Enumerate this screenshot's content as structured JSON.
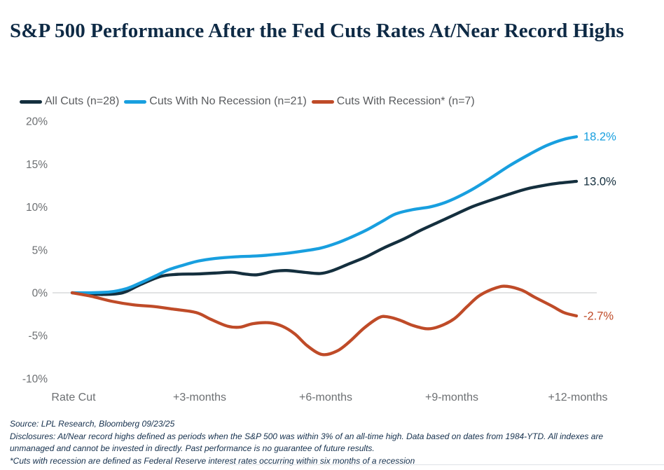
{
  "title": "S&P 500 Performance After the Fed Cuts Rates At/Near Record Highs",
  "colors": {
    "title_navy": "#0e2a45",
    "axis_gray": "#6c6f72",
    "legend_gray": "#595b5e",
    "gridline_gray": "#d9dadc",
    "all_cuts": "#142f3e",
    "no_recession": "#189fdf",
    "recession": "#bf4b28",
    "background": "#ffffff"
  },
  "footer": {
    "source": "Source: LPL Research, Bloomberg 09/23/25",
    "disclosure": "Disclosures: At/Near record highs defined as periods when the S&P 500 was within 3% of an all-time high. Data based on dates from 1984-YTD. All indexes are unmanaged and cannot be invested in directly. Past performance is no guarantee of future results.",
    "footnote": "*Cuts with recession are defined as Federal Reserve interest rates occurring within six months of a recession"
  },
  "chart_data": {
    "type": "line",
    "title": "S&P 500 Performance After the Fed Cuts Rates At/Near Record Highs",
    "xlabel": "",
    "ylabel": "",
    "x_categories": [
      "Rate Cut",
      "+3-months",
      "+6-months",
      "+9-months",
      "+12-months"
    ],
    "x_category_months": [
      0,
      3,
      6,
      9,
      12
    ],
    "x_range_months": [
      0,
      12
    ],
    "y_ticks": [
      20,
      15,
      10,
      5,
      0,
      -5,
      -10
    ],
    "y_tick_labels": [
      "20%",
      "15%",
      "10%",
      "5%",
      "0%",
      "-5%",
      "-10%"
    ],
    "ylim": [
      -10,
      20
    ],
    "grid": "horizontal line at 0% only",
    "legend_position": "top-left",
    "series": [
      {
        "name": "All Cuts (n=28)",
        "color": "#142f3e",
        "end_label": "13.0%",
        "final_value": 13.0,
        "points": [
          [
            0,
            0
          ],
          [
            0.35,
            -0.1
          ],
          [
            0.75,
            -0.2
          ],
          [
            1.2,
            0.0
          ],
          [
            1.6,
            0.9
          ],
          [
            2.1,
            1.9
          ],
          [
            2.5,
            2.15
          ],
          [
            2.95,
            2.2
          ],
          [
            3.4,
            2.3
          ],
          [
            3.8,
            2.4
          ],
          [
            4.1,
            2.2
          ],
          [
            4.4,
            2.1
          ],
          [
            4.8,
            2.5
          ],
          [
            5.1,
            2.6
          ],
          [
            5.5,
            2.4
          ],
          [
            5.9,
            2.25
          ],
          [
            6.2,
            2.6
          ],
          [
            6.6,
            3.4
          ],
          [
            7.0,
            4.2
          ],
          [
            7.4,
            5.2
          ],
          [
            7.9,
            6.3
          ],
          [
            8.3,
            7.3
          ],
          [
            8.7,
            8.2
          ],
          [
            9.1,
            9.1
          ],
          [
            9.5,
            10.0
          ],
          [
            9.9,
            10.7
          ],
          [
            10.4,
            11.5
          ],
          [
            10.8,
            12.1
          ],
          [
            11.2,
            12.5
          ],
          [
            11.6,
            12.8
          ],
          [
            12,
            13.0
          ]
        ]
      },
      {
        "name": "Cuts With No Recession (n=21)",
        "color": "#189fdf",
        "end_label": "18.2%",
        "final_value": 18.2,
        "points": [
          [
            0,
            0
          ],
          [
            0.4,
            0.0
          ],
          [
            0.9,
            0.1
          ],
          [
            1.3,
            0.5
          ],
          [
            1.6,
            1.1
          ],
          [
            2.0,
            2.0
          ],
          [
            2.3,
            2.7
          ],
          [
            2.7,
            3.3
          ],
          [
            3.0,
            3.7
          ],
          [
            3.4,
            4.0
          ],
          [
            3.9,
            4.2
          ],
          [
            4.4,
            4.3
          ],
          [
            4.9,
            4.5
          ],
          [
            5.4,
            4.8
          ],
          [
            5.9,
            5.2
          ],
          [
            6.3,
            5.8
          ],
          [
            6.6,
            6.4
          ],
          [
            7.0,
            7.3
          ],
          [
            7.4,
            8.4
          ],
          [
            7.7,
            9.2
          ],
          [
            8.1,
            9.7
          ],
          [
            8.5,
            10.0
          ],
          [
            8.8,
            10.4
          ],
          [
            9.1,
            11.0
          ],
          [
            9.5,
            12.0
          ],
          [
            9.9,
            13.2
          ],
          [
            10.4,
            14.8
          ],
          [
            10.9,
            16.2
          ],
          [
            11.3,
            17.2
          ],
          [
            11.7,
            17.9
          ],
          [
            12,
            18.2
          ]
        ]
      },
      {
        "name": "Cuts With Recession* (n=7)",
        "color": "#bf4b28",
        "end_label": "-2.7%",
        "final_value": -2.7,
        "points": [
          [
            0,
            0
          ],
          [
            0.45,
            -0.4
          ],
          [
            0.95,
            -1.0
          ],
          [
            1.45,
            -1.4
          ],
          [
            1.95,
            -1.6
          ],
          [
            2.4,
            -1.9
          ],
          [
            2.95,
            -2.3
          ],
          [
            3.3,
            -3.1
          ],
          [
            3.7,
            -3.9
          ],
          [
            4.0,
            -4.0
          ],
          [
            4.3,
            -3.6
          ],
          [
            4.7,
            -3.5
          ],
          [
            5.0,
            -3.9
          ],
          [
            5.3,
            -4.8
          ],
          [
            5.6,
            -6.2
          ],
          [
            5.95,
            -7.2
          ],
          [
            6.3,
            -6.8
          ],
          [
            6.6,
            -5.7
          ],
          [
            6.95,
            -4.1
          ],
          [
            7.3,
            -2.9
          ],
          [
            7.5,
            -2.8
          ],
          [
            7.8,
            -3.2
          ],
          [
            8.1,
            -3.8
          ],
          [
            8.45,
            -4.2
          ],
          [
            8.75,
            -3.9
          ],
          [
            9.1,
            -3.0
          ],
          [
            9.4,
            -1.6
          ],
          [
            9.7,
            -0.3
          ],
          [
            10.1,
            0.6
          ],
          [
            10.35,
            0.75
          ],
          [
            10.7,
            0.3
          ],
          [
            11.0,
            -0.5
          ],
          [
            11.4,
            -1.5
          ],
          [
            11.7,
            -2.3
          ],
          [
            12,
            -2.7
          ]
        ]
      }
    ]
  }
}
